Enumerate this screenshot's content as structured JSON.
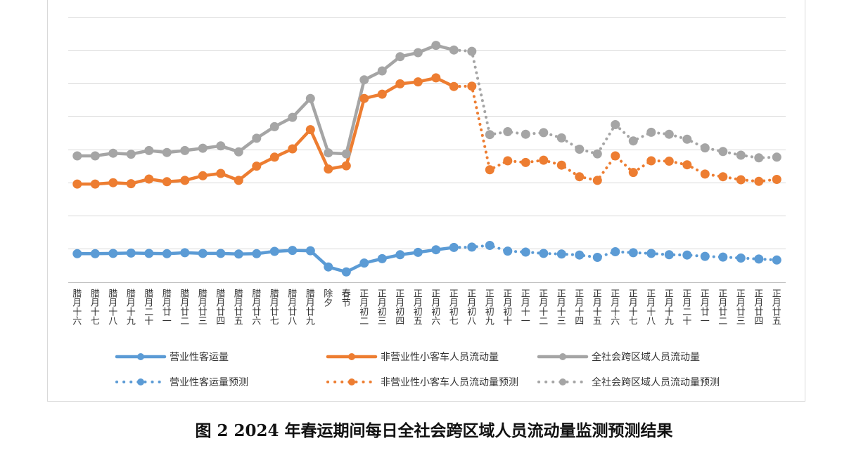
{
  "caption": "图 2 2024 年春运期间每日全社会跨区域人员流动量监测预测结果",
  "chart_data": {
    "type": "line",
    "title": "",
    "xlabel": "",
    "ylabel": "",
    "grid": true,
    "legend_position": "bottom",
    "categories": [
      "腊月十六",
      "腊月十七",
      "腊月十八",
      "腊月十九",
      "腊月二十",
      "腊月廿一",
      "腊月廿二",
      "腊月廿三",
      "腊月廿四",
      "腊月廿五",
      "腊月廿六",
      "腊月廿七",
      "腊月廿八",
      "腊月廿九",
      "除夕",
      "春节",
      "正月初二",
      "正月初三",
      "正月初四",
      "正月初五",
      "正月初六",
      "正月初七",
      "正月初八",
      "正月初九",
      "正月初十",
      "正月十一",
      "正月十二",
      "正月十三",
      "正月十四",
      "正月十五",
      "正月十六",
      "正月十七",
      "正月十八",
      "正月十九",
      "正月二十",
      "正月廿一",
      "正月廿二",
      "正月廿三",
      "正月廿四",
      "正月廿五"
    ],
    "series": [
      {
        "name": "营业性客运量",
        "key": "s1",
        "color": "#5b9bd5",
        "values": [
          0.85,
          0.85,
          0.86,
          0.87,
          0.86,
          0.85,
          0.88,
          0.86,
          0.86,
          0.84,
          0.85,
          0.92,
          0.95,
          0.94,
          0.45,
          0.3,
          0.57,
          0.7,
          0.82,
          0.89,
          0.97,
          1.04,
          1.05,
          1.1,
          0.93,
          0.9,
          0.86,
          0.84,
          0.81,
          0.74,
          0.91,
          0.88,
          0.86,
          0.82,
          0.81,
          0.77,
          0.75,
          0.72,
          0.69,
          0.66
        ],
        "observed_count": 22
      },
      {
        "name": "非营业性小客车人员流动量",
        "key": "s2",
        "color": "#ed7d31",
        "values": [
          2.95,
          2.95,
          2.99,
          2.96,
          3.1,
          3.02,
          3.06,
          3.2,
          3.27,
          3.06,
          3.49,
          3.76,
          4.01,
          4.59,
          3.4,
          3.5,
          5.53,
          5.66,
          5.97,
          6.03,
          6.15,
          5.89,
          5.9,
          3.38,
          3.65,
          3.6,
          3.67,
          3.52,
          3.17,
          3.06,
          3.8,
          3.3,
          3.65,
          3.64,
          3.53,
          3.25,
          3.17,
          3.08,
          3.03,
          3.09
        ],
        "observed_count": 22
      },
      {
        "name": "全社会跨区域人员流动量",
        "key": "s3",
        "color": "#a5a5a5",
        "values": [
          3.8,
          3.8,
          3.88,
          3.85,
          3.96,
          3.9,
          3.96,
          4.03,
          4.1,
          3.92,
          4.33,
          4.68,
          4.96,
          5.53,
          3.89,
          3.86,
          6.09,
          6.36,
          6.79,
          6.91,
          7.13,
          6.99,
          6.95,
          4.44,
          4.53,
          4.45,
          4.5,
          4.34,
          4.0,
          3.86,
          4.74,
          4.25,
          4.51,
          4.45,
          4.3,
          4.04,
          3.93,
          3.82,
          3.74,
          3.76
        ],
        "observed_count": 22
      },
      {
        "name": "营业性客运量预测",
        "key": "s4",
        "color": "#5b9bd5",
        "dashed": true
      },
      {
        "name": "非营业性小客车人员流动量预测",
        "key": "s5",
        "color": "#ed7d31",
        "dashed": true
      },
      {
        "name": "全社会跨区域人员流动量预测",
        "key": "s6",
        "color": "#a5a5a5",
        "dashed": true
      }
    ],
    "ylim": [
      0,
      8
    ],
    "y_gridlines": [
      0,
      1,
      2,
      3,
      4,
      5,
      6,
      7,
      8
    ]
  }
}
